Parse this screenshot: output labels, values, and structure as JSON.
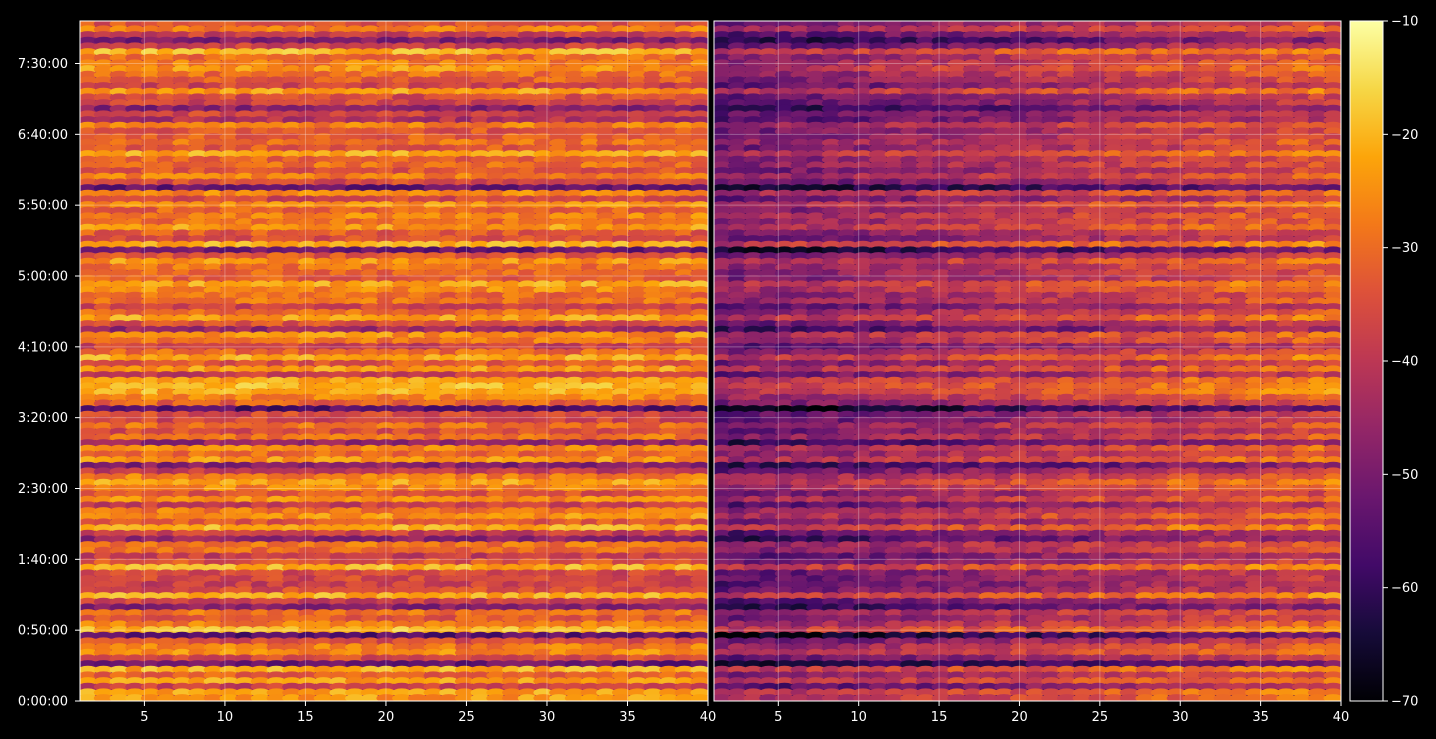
{
  "chart_data": {
    "type": "heatmap",
    "title": "",
    "xlabel": "",
    "ylabel": "",
    "panels": [
      {
        "name": "",
        "x_range": [
          1,
          40
        ],
        "x_ticks": [
          5,
          10,
          15,
          20,
          25,
          30,
          35,
          40
        ],
        "x_tick_labels": [
          "5",
          "10",
          "15",
          "20",
          "25",
          "30",
          "35",
          "40"
        ],
        "level": "bright"
      },
      {
        "name": "",
        "x_range": [
          1,
          40
        ],
        "x_ticks": [
          5,
          10,
          15,
          20,
          25,
          30,
          35,
          40
        ],
        "x_tick_labels": [
          "5",
          "10",
          "15",
          "20",
          "25",
          "30",
          "35",
          "40"
        ],
        "level": "dark"
      }
    ],
    "y_range_seconds": [
      0,
      28800
    ],
    "y_ticks_seconds": [
      0,
      3000,
      6000,
      9000,
      12000,
      15000,
      18000,
      21000,
      24000,
      27000
    ],
    "y_tick_labels": [
      "0:00:00",
      "0:50:00",
      "1:40:00",
      "2:30:00",
      "3:20:00",
      "4:10:00",
      "5:00:00",
      "5:50:00",
      "6:40:00",
      "7:30:00"
    ],
    "grid": true,
    "colorbar": {
      "range": [
        -70,
        -10
      ],
      "ticks": [
        -70,
        -60,
        -50,
        -40,
        -30,
        -20,
        -10
      ],
      "tick_labels": [
        "−70",
        "−60",
        "−50",
        "−40",
        "−30",
        "−20",
        "−10"
      ],
      "colormap": "inferno"
    },
    "colors": {
      "background": "#000000",
      "axis": "#ffffff",
      "grid": "#ffffff"
    }
  }
}
